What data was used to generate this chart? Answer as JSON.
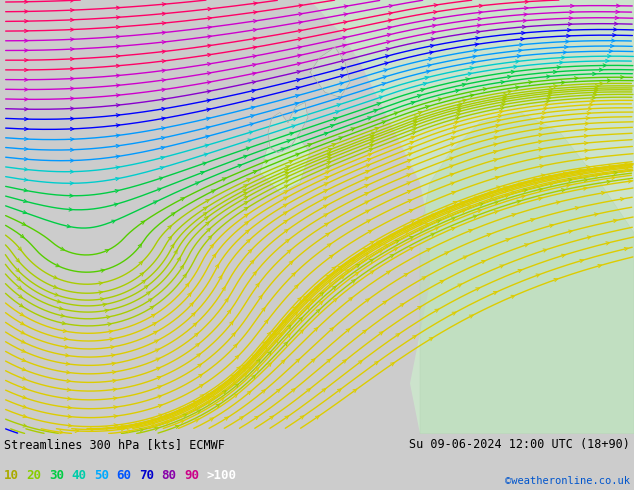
{
  "title_left": "Streamlines 300 hPa [kts] ECMWF",
  "title_right": "Su 09-06-2024 12:00 UTC (18+90)",
  "credit": "©weatheronline.co.uk",
  "legend_values": [
    "10",
    "20",
    "30",
    "40",
    "50",
    "60",
    "70",
    "80",
    "90",
    ">100"
  ],
  "legend_colors": [
    "#aaaa00",
    "#99cc00",
    "#00cc88",
    "#00cccc",
    "#0088ff",
    "#0000ff",
    "#8800cc",
    "#cc00cc",
    "#ff0066",
    "#ff4400"
  ],
  "bg_color": "#cccccc",
  "map_bg": "#e0e0e0",
  "bottom_bg": "#cccccc",
  "fig_width": 6.34,
  "fig_height": 4.9,
  "dpi": 100
}
